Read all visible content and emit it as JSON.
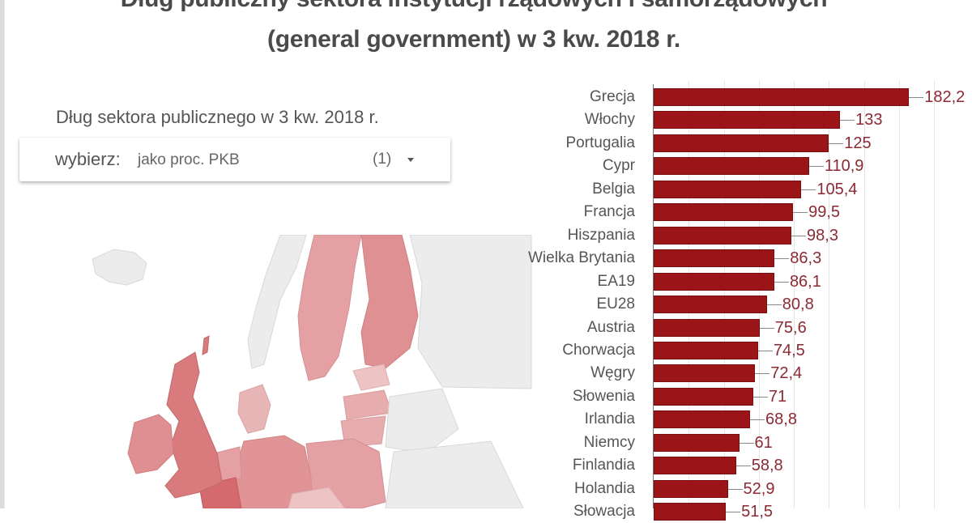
{
  "title": {
    "line1": "Dług publiczny sektora instytucji rządowych i samorządowych",
    "line2": "(general government) w 3 kw. 2018 r."
  },
  "map_panel": {
    "subtitle": "Dług sektora publicznego w 3 kw. 2018 r.",
    "selector": {
      "label": "wybierz",
      "separator": ":",
      "value": "jako proc. PKB",
      "count": "(1)",
      "icon": "caret-down-icon"
    }
  },
  "colors": {
    "bar": "#9b1518",
    "value_label": "#8b2a33",
    "map_dark": "#d97a7c",
    "map_mid": "#e4a0a2",
    "map_light": "#edc3c4",
    "map_nodata": "#ececec"
  },
  "chart_data": {
    "type": "bar",
    "orientation": "horizontal",
    "title": "Dług publiczny sektora instytucji rządowych i samorządowych (general government) w 3 kw. 2018 r.",
    "xlabel": "",
    "ylabel": "",
    "unit": "% PKB",
    "xlim": [
      0,
      200
    ],
    "grid": true,
    "grid_step": 25,
    "categories": [
      "Grecja",
      "Włochy",
      "Portugalia",
      "Cypr",
      "Belgia",
      "Francja",
      "Hiszpania",
      "Wielka Brytania",
      "EA19",
      "EU28",
      "Austria",
      "Chorwacja",
      "Węgry",
      "Słowenia",
      "Irlandia",
      "Niemcy",
      "Finlandia",
      "Holandia",
      "Słowacja"
    ],
    "values": [
      182.2,
      133,
      125,
      110.9,
      105.4,
      99.5,
      98.3,
      86.3,
      86.1,
      80.8,
      75.6,
      74.5,
      72.4,
      71,
      68.8,
      61,
      58.8,
      52.9,
      51.5
    ],
    "value_labels": [
      "182,2",
      "133",
      "125",
      "110,9",
      "105,4",
      "99,5",
      "98,3",
      "86,3",
      "86,1",
      "80,8",
      "75,6",
      "74,5",
      "72,4",
      "71",
      "68,8",
      "61",
      "58,8",
      "52,9",
      "51,5"
    ]
  }
}
